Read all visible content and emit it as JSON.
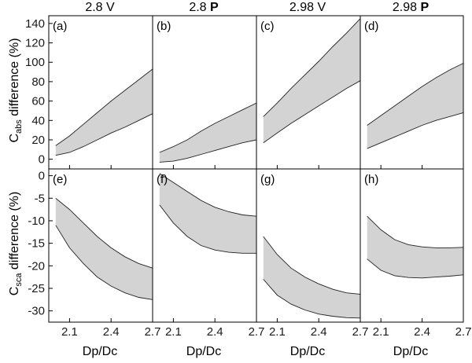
{
  "figure": {
    "columns": [
      {
        "title": "2.8 V",
        "prefix": "2.8 ",
        "bold": "",
        "suffix": "V"
      },
      {
        "title": "2.8 P",
        "prefix": "2.8 ",
        "bold": "P",
        "suffix": ""
      },
      {
        "title": "2.98 V",
        "prefix": "2.98 ",
        "bold": "",
        "suffix": "V"
      },
      {
        "title": "2.98 P",
        "prefix": "2.98 ",
        "bold": "P",
        "suffix": ""
      }
    ],
    "ylabel_top": {
      "prefix": "C",
      "sub": "abs",
      "rest": " difference (%)"
    },
    "ylabel_bottom": {
      "prefix": "C",
      "sub": "sca",
      "rest": " difference (%)"
    },
    "xlabel": "Dp/Dc"
  },
  "chart_data": [
    {
      "type": "area",
      "panel": "(a)",
      "row": 0,
      "col": 0,
      "x": [
        2.0,
        2.1,
        2.2,
        2.3,
        2.4,
        2.5,
        2.6,
        2.7
      ],
      "lower": [
        4,
        7,
        13,
        20,
        27,
        33,
        40,
        47
      ],
      "upper": [
        14,
        24,
        36,
        48,
        60,
        71,
        82,
        93
      ],
      "xlim": [
        1.95,
        2.7
      ],
      "ylim": [
        -10,
        148
      ],
      "xticks": [
        "2.1",
        "2.4",
        "2.7"
      ],
      "yticks": [
        "0",
        "20",
        "40",
        "60",
        "80",
        "100",
        "120",
        "140"
      ]
    },
    {
      "type": "area",
      "panel": "(b)",
      "row": 0,
      "col": 1,
      "x": [
        2.0,
        2.1,
        2.2,
        2.3,
        2.4,
        2.5,
        2.6,
        2.7
      ],
      "lower": [
        -3,
        -2,
        1,
        5,
        9,
        13,
        17,
        20
      ],
      "upper": [
        7,
        13,
        20,
        29,
        37,
        44,
        51,
        58
      ],
      "xlim": [
        1.95,
        2.7
      ],
      "ylim": [
        -10,
        148
      ],
      "xticks": [
        "2.1",
        "2.4",
        "2.7"
      ]
    },
    {
      "type": "area",
      "panel": "(c)",
      "row": 0,
      "col": 2,
      "x": [
        2.0,
        2.1,
        2.2,
        2.3,
        2.4,
        2.5,
        2.6,
        2.7
      ],
      "lower": [
        17,
        27,
        37,
        46,
        55,
        64,
        73,
        81
      ],
      "upper": [
        44,
        58,
        73,
        87,
        101,
        116,
        130,
        145
      ],
      "xlim": [
        1.95,
        2.7
      ],
      "ylim": [
        -10,
        148
      ],
      "xticks": [
        "2.1",
        "2.4",
        "2.7"
      ]
    },
    {
      "type": "area",
      "panel": "(d)",
      "row": 0,
      "col": 3,
      "x": [
        2.0,
        2.1,
        2.2,
        2.3,
        2.4,
        2.5,
        2.6,
        2.7
      ],
      "lower": [
        11,
        17,
        23,
        29,
        35,
        40,
        44,
        48
      ],
      "upper": [
        35,
        45,
        55,
        65,
        75,
        84,
        92,
        99
      ],
      "xlim": [
        1.95,
        2.7
      ],
      "ylim": [
        -10,
        148
      ],
      "xticks": [
        "2.1",
        "2.4",
        "2.7"
      ]
    },
    {
      "type": "area",
      "panel": "(e)",
      "row": 1,
      "col": 0,
      "x": [
        2.0,
        2.1,
        2.2,
        2.3,
        2.4,
        2.5,
        2.6,
        2.7
      ],
      "upper": [
        -5,
        -7.5,
        -10.5,
        -13.5,
        -16,
        -18,
        -19.5,
        -20.5
      ],
      "lower": [
        -11,
        -16,
        -19.5,
        -22.5,
        -24.5,
        -26,
        -27,
        -27.5
      ],
      "xlim": [
        1.95,
        2.7
      ],
      "ylim": [
        -32.5,
        1.5
      ],
      "xticks": [
        "2.1",
        "2.4",
        "2.7"
      ],
      "yticks": [
        "0",
        "-5",
        "-10",
        "-15",
        "-20",
        "-25",
        "-30"
      ]
    },
    {
      "type": "area",
      "panel": "(f)",
      "row": 1,
      "col": 1,
      "x": [
        2.0,
        2.1,
        2.2,
        2.3,
        2.4,
        2.5,
        2.6,
        2.7
      ],
      "upper": [
        0.5,
        -1.5,
        -3.5,
        -5.5,
        -7,
        -8,
        -8.7,
        -9
      ],
      "lower": [
        -6.5,
        -10.5,
        -13.5,
        -15.5,
        -16.5,
        -17,
        -17.2,
        -17.2
      ],
      "xlim": [
        1.95,
        2.7
      ],
      "ylim": [
        -32.5,
        1.5
      ],
      "xticks": [
        "2.1",
        "2.4",
        "2.7"
      ]
    },
    {
      "type": "area",
      "panel": "(g)",
      "row": 1,
      "col": 2,
      "x": [
        2.0,
        2.1,
        2.2,
        2.3,
        2.4,
        2.5,
        2.6,
        2.7
      ],
      "upper": [
        -13.5,
        -17.5,
        -20.5,
        -22.5,
        -24,
        -25.2,
        -26,
        -26.3
      ],
      "lower": [
        -23,
        -26.5,
        -28.5,
        -29.8,
        -30.7,
        -31.2,
        -31.5,
        -31.6
      ],
      "xlim": [
        1.95,
        2.7
      ],
      "ylim": [
        -32.5,
        1.5
      ],
      "xticks": [
        "2.1",
        "2.4",
        "2.7"
      ]
    },
    {
      "type": "area",
      "panel": "(h)",
      "row": 1,
      "col": 3,
      "x": [
        2.0,
        2.1,
        2.2,
        2.3,
        2.4,
        2.5,
        2.6,
        2.7
      ],
      "upper": [
        -9,
        -12,
        -14.2,
        -15.3,
        -15.8,
        -16,
        -16,
        -15.9
      ],
      "lower": [
        -18.5,
        -21,
        -22.2,
        -22.6,
        -22.7,
        -22.5,
        -22.3,
        -22
      ],
      "xlim": [
        1.95,
        2.7
      ],
      "ylim": [
        -32.5,
        1.5
      ],
      "xticks": [
        "2.1",
        "2.4",
        "2.7"
      ]
    }
  ],
  "colors": {
    "band_fill": "#d3d3d3",
    "line": "#222222",
    "frame": "#000000"
  }
}
